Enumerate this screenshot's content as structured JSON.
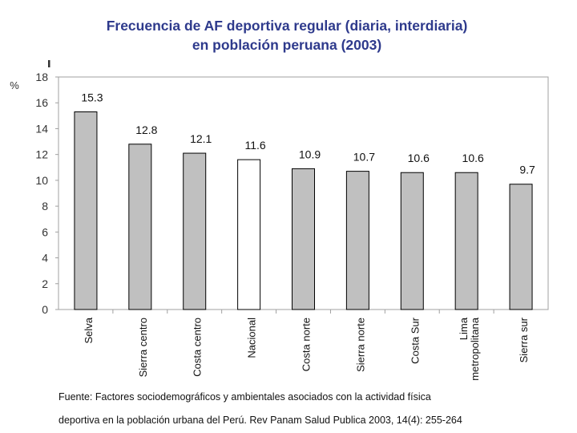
{
  "chart_data": {
    "type": "bar",
    "title_line1": "Frecuencia de AF deportiva regular (diaria, interdiaria)",
    "title_line2": "en población peruana (2003)",
    "ylabel": "%",
    "ylim": [
      0,
      18
    ],
    "yticks": [
      0,
      2,
      4,
      6,
      8,
      10,
      12,
      14,
      16,
      18
    ],
    "categories": [
      "Selva",
      "Sierra centro",
      "Costa centro",
      "Nacional",
      "Costa norte",
      "Sierra norte",
      "Costa Sur",
      "Lima metropolitana",
      "Sierra sur"
    ],
    "category_lines": [
      [
        "Selva"
      ],
      [
        "Sierra centro"
      ],
      [
        "Costa centro"
      ],
      [
        "Nacional"
      ],
      [
        "Costa norte"
      ],
      [
        "Sierra norte"
      ],
      [
        "Costa Sur"
      ],
      [
        "Lima",
        "metropolitana"
      ],
      [
        "Sierra sur"
      ]
    ],
    "values": [
      15.3,
      12.8,
      12.1,
      11.6,
      10.9,
      10.7,
      10.6,
      10.6,
      9.7
    ],
    "value_labels": [
      "15.3",
      "12.8",
      "12.1",
      "11.6",
      "10.9",
      "10.7",
      "10.6",
      "10.6",
      "9.7"
    ],
    "highlight_category": "Nacional",
    "colors": {
      "bar": "#c0c0c0",
      "highlight": "#ffffff",
      "title": "#2e3a8c"
    }
  },
  "source": {
    "line1": "Fuente: Factores sociodemográficos y ambientales asociados con la actividad física",
    "line2": "deportiva en la población urbana del Perú. Rev Panam Salud Publica 2003, 14(4): 255-264"
  }
}
